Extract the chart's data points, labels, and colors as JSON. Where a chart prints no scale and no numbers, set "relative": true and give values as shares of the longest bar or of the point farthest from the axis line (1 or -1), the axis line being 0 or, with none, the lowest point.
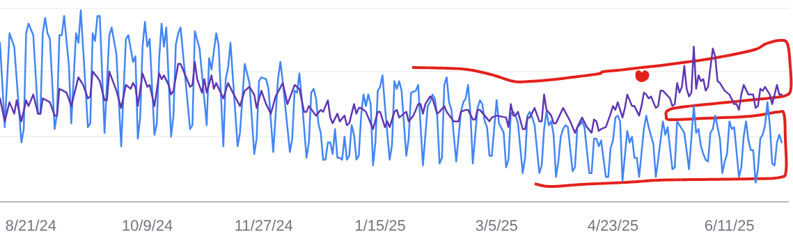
{
  "chart_data": {
    "type": "line",
    "relative": true,
    "tick_labels": "x",
    "line_style": "solid",
    "xlim": [
      "2024-08-08",
      "2025-07-06"
    ],
    "xticks": [
      {
        "value": "2024-08-21",
        "label": "8/21/24"
      },
      {
        "value": "2024-10-09",
        "label": "10/9/24"
      },
      {
        "value": "2024-11-27",
        "label": "11/27/24"
      },
      {
        "value": "2025-01-15",
        "label": "1/15/25"
      },
      {
        "value": "2025-03-05",
        "label": "3/5/25"
      },
      {
        "value": "2025-04-23",
        "label": "4/23/25"
      },
      {
        "value": "2025-06-11",
        "label": "6/11/25"
      }
    ],
    "ref_lines": [
      {
        "axis": "y",
        "value": 0.34,
        "color": "#e8e8e8"
      },
      {
        "axis": "y",
        "value": 0.68,
        "color": "#e8e8e8"
      },
      {
        "axis": "y",
        "value": 1.01,
        "color": "#e8e8e8"
      }
    ],
    "series": [
      {
        "color": "#4285f4",
        "x": [
          "2024-08-08",
          "2024-08-10",
          "2024-08-12",
          "2024-08-14",
          "2024-08-17",
          "2024-08-18",
          "2024-08-19",
          "2024-08-20",
          "2024-08-22",
          "2024-08-24",
          "2024-08-25",
          "2024-08-26",
          "2024-08-27",
          "2024-08-28",
          "2024-08-29",
          "2024-08-31",
          "2024-09-01",
          "2024-09-02",
          "2024-09-03",
          "2024-09-04",
          "2024-09-06",
          "2024-09-07",
          "2024-09-09",
          "2024-09-10",
          "2024-09-11",
          "2024-09-14",
          "2024-09-15",
          "2024-09-16",
          "2024-09-17",
          "2024-09-18",
          "2024-09-19",
          "2024-09-21",
          "2024-09-23",
          "2024-09-24",
          "2024-09-26",
          "2024-09-28",
          "2024-09-30",
          "2024-10-01",
          "2024-10-03",
          "2024-10-04",
          "2024-10-05",
          "2024-10-06",
          "2024-10-07",
          "2024-10-08",
          "2024-10-09",
          "2024-10-10",
          "2024-10-12",
          "2024-10-13",
          "2024-10-14",
          "2024-10-15",
          "2024-10-16",
          "2024-10-17",
          "2024-10-19",
          "2024-10-20",
          "2024-10-21",
          "2024-10-22",
          "2024-10-23",
          "2024-10-27",
          "2024-10-28",
          "2024-10-29",
          "2024-10-31",
          "2024-11-03",
          "2024-11-04",
          "2024-11-05",
          "2024-11-07",
          "2024-11-08",
          "2024-11-10",
          "2024-11-11",
          "2024-11-12",
          "2024-11-13",
          "2024-11-16",
          "2024-11-17",
          "2024-11-19",
          "2024-11-21",
          "2024-11-23",
          "2024-11-24",
          "2024-11-25",
          "2024-11-26",
          "2024-11-28",
          "2024-11-29",
          "2024-12-01",
          "2024-12-03",
          "2024-12-04",
          "2024-12-05",
          "2024-12-08",
          "2024-12-09",
          "2024-12-10",
          "2024-12-11",
          "2024-12-12",
          "2024-12-13",
          "2024-12-15",
          "2024-12-16",
          "2024-12-17",
          "2024-12-18",
          "2024-12-19",
          "2024-12-20",
          "2024-12-21",
          "2024-12-22",
          "2024-12-23",
          "2024-12-24",
          "2024-12-25",
          "2024-12-26",
          "2024-12-27",
          "2024-12-28",
          "2024-12-29",
          "2024-12-30",
          "2024-12-31",
          "2025-01-01",
          "2025-01-02",
          "2025-01-03",
          "2025-01-04",
          "2025-01-05",
          "2025-01-06",
          "2025-01-07",
          "2025-01-08",
          "2025-01-09",
          "2025-01-10",
          "2025-01-11",
          "2025-01-12",
          "2025-01-13",
          "2025-01-14",
          "2025-01-15",
          "2025-01-16",
          "2025-01-17",
          "2025-01-19",
          "2025-01-20",
          "2025-01-21",
          "2025-01-22",
          "2025-01-23",
          "2025-01-24",
          "2025-01-26",
          "2025-01-27",
          "2025-01-28",
          "2025-01-30",
          "2025-01-31",
          "2025-02-02",
          "2025-02-04",
          "2025-02-05",
          "2025-02-06",
          "2025-02-07",
          "2025-02-08",
          "2025-02-09",
          "2025-02-10",
          "2025-02-11",
          "2025-02-12",
          "2025-02-13",
          "2025-02-14",
          "2025-02-16",
          "2025-02-18",
          "2025-02-19",
          "2025-02-20",
          "2025-02-21",
          "2025-02-22",
          "2025-02-23",
          "2025-02-25",
          "2025-02-26",
          "2025-02-27",
          "2025-02-28",
          "2025-03-01",
          "2025-03-02",
          "2025-03-03",
          "2025-03-05",
          "2025-03-06",
          "2025-03-08",
          "2025-03-09",
          "2025-03-10",
          "2025-03-11",
          "2025-03-12",
          "2025-03-13",
          "2025-03-14",
          "2025-03-16",
          "2025-03-17",
          "2025-03-18",
          "2025-03-19",
          "2025-03-20",
          "2025-03-21",
          "2025-03-23",
          "2025-03-24",
          "2025-03-25",
          "2025-03-26",
          "2025-03-27",
          "2025-03-28",
          "2025-03-29",
          "2025-03-30",
          "2025-03-31",
          "2025-04-01",
          "2025-04-02",
          "2025-04-03",
          "2025-04-04",
          "2025-04-06",
          "2025-04-07",
          "2025-04-08",
          "2025-04-09",
          "2025-04-10",
          "2025-04-11",
          "2025-04-13",
          "2025-04-14",
          "2025-04-15",
          "2025-04-16",
          "2025-04-17",
          "2025-04-18",
          "2025-04-20",
          "2025-04-21",
          "2025-04-22",
          "2025-04-23",
          "2025-04-24",
          "2025-04-25",
          "2025-04-26",
          "2025-04-27",
          "2025-04-29",
          "2025-04-30",
          "2025-05-01",
          "2025-05-02",
          "2025-05-03",
          "2025-05-04",
          "2025-05-06",
          "2025-05-07",
          "2025-05-08",
          "2025-05-10",
          "2025-05-11",
          "2025-05-12",
          "2025-05-14",
          "2025-05-15",
          "2025-05-16",
          "2025-05-18",
          "2025-05-19",
          "2025-05-20",
          "2025-05-21",
          "2025-05-22",
          "2025-05-23",
          "2025-05-25",
          "2025-05-27",
          "2025-05-28",
          "2025-05-29",
          "2025-05-30",
          "2025-05-31",
          "2025-06-01",
          "2025-06-02",
          "2025-06-03",
          "2025-06-04",
          "2025-06-05",
          "2025-06-07",
          "2025-06-08",
          "2025-06-09",
          "2025-06-10",
          "2025-06-11",
          "2025-06-12",
          "2025-06-13",
          "2025-06-15",
          "2025-06-16",
          "2025-06-17",
          "2025-06-18",
          "2025-06-19",
          "2025-06-20",
          "2025-06-21",
          "2025-06-22",
          "2025-06-23",
          "2025-06-24",
          "2025-06-25",
          "2025-06-26",
          "2025-06-27",
          "2025-06-28",
          "2025-06-29",
          "2025-06-30",
          "2025-07-01",
          "2025-07-02",
          "2025-07-03"
        ],
        "values": [
          0.83,
          0.39,
          0.88,
          0.81,
          0.31,
          0.38,
          0.88,
          0.93,
          0.87,
          0.46,
          0.46,
          0.88,
          0.96,
          0.88,
          0.85,
          0.38,
          0.46,
          0.87,
          0.87,
          0.97,
          0.71,
          0.41,
          0.88,
          0.83,
          1.0,
          0.39,
          0.41,
          0.88,
          0.84,
          0.97,
          0.97,
          0.36,
          0.87,
          0.91,
          0.77,
          0.29,
          0.85,
          0.87,
          0.73,
          0.76,
          0.33,
          0.44,
          0.81,
          0.94,
          0.81,
          0.85,
          0.35,
          0.41,
          0.75,
          0.93,
          0.81,
          0.91,
          0.34,
          0.45,
          0.82,
          0.88,
          0.91,
          0.38,
          0.4,
          0.89,
          0.8,
          0.4,
          0.75,
          0.69,
          0.88,
          0.82,
          0.29,
          0.64,
          0.7,
          0.83,
          0.29,
          0.36,
          0.72,
          0.62,
          0.25,
          0.33,
          0.63,
          0.65,
          0.64,
          0.59,
          0.26,
          0.64,
          0.73,
          0.63,
          0.26,
          0.33,
          0.58,
          0.57,
          0.67,
          0.54,
          0.23,
          0.31,
          0.57,
          0.59,
          0.54,
          0.41,
          0.36,
          0.22,
          0.22,
          0.31,
          0.31,
          0.25,
          0.38,
          0.23,
          0.23,
          0.22,
          0.34,
          0.22,
          0.24,
          0.4,
          0.35,
          0.22,
          0.24,
          0.45,
          0.56,
          0.5,
          0.56,
          0.51,
          0.19,
          0.31,
          0.58,
          0.6,
          0.66,
          0.5,
          0.22,
          0.3,
          0.63,
          0.59,
          0.63,
          0.58,
          0.24,
          0.33,
          0.57,
          0.58,
          0.61,
          0.19,
          0.5,
          0.52,
          0.56,
          0.54,
          0.45,
          0.2,
          0.23,
          0.61,
          0.65,
          0.52,
          0.48,
          0.21,
          0.47,
          0.52,
          0.54,
          0.61,
          0.46,
          0.2,
          0.49,
          0.53,
          0.51,
          0.42,
          0.39,
          0.24,
          0.24,
          0.53,
          0.41,
          0.36,
          0.18,
          0.22,
          0.46,
          0.47,
          0.45,
          0.41,
          0.15,
          0.23,
          0.45,
          0.47,
          0.44,
          0.4,
          0.15,
          0.19,
          0.38,
          0.47,
          0.4,
          0.42,
          0.35,
          0.13,
          0.21,
          0.34,
          0.38,
          0.4,
          0.39,
          0.16,
          0.18,
          0.39,
          0.4,
          0.42,
          0.39,
          0.15,
          0.15,
          0.33,
          0.33,
          0.29,
          0.32,
          0.13,
          0.13,
          0.28,
          0.32,
          0.44,
          0.45,
          0.42,
          0.11,
          0.37,
          0.31,
          0.34,
          0.23,
          0.23,
          0.13,
          0.38,
          0.45,
          0.39,
          0.3,
          0.13,
          0.22,
          0.42,
          0.35,
          0.39,
          0.17,
          0.18,
          0.42,
          0.4,
          0.38,
          0.36,
          0.17,
          0.5,
          0.36,
          0.38,
          0.29,
          0.25,
          0.22,
          0.21,
          0.36,
          0.38,
          0.45,
          0.33,
          0.15,
          0.21,
          0.25,
          0.42,
          0.38,
          0.39,
          0.13,
          0.18,
          0.34,
          0.42,
          0.32,
          0.27,
          0.27,
          0.1,
          0.17,
          0.33,
          0.35,
          0.4,
          0.52,
          0.4,
          0.2,
          0.19,
          0.31,
          0.35,
          0.31
        ]
      },
      {
        "color": "#5e35b1",
        "x": [
          "2024-08-08",
          "2024-08-10",
          "2024-08-12",
          "2024-08-14",
          "2024-08-15",
          "2024-08-17",
          "2024-08-19",
          "2024-08-20",
          "2024-08-22",
          "2024-08-24",
          "2024-08-25",
          "2024-08-26",
          "2024-08-29",
          "2024-08-31",
          "2024-09-01",
          "2024-09-02",
          "2024-09-05",
          "2024-09-07",
          "2024-09-10",
          "2024-09-12",
          "2024-09-14",
          "2024-09-15",
          "2024-09-16",
          "2024-09-18",
          "2024-09-19",
          "2024-09-21",
          "2024-09-22",
          "2024-09-23",
          "2024-09-26",
          "2024-09-28",
          "2024-09-30",
          "2024-10-02",
          "2024-10-03",
          "2024-10-04",
          "2024-10-05",
          "2024-10-07",
          "2024-10-09",
          "2024-10-10",
          "2024-10-12",
          "2024-10-14",
          "2024-10-15",
          "2024-10-16",
          "2024-10-18",
          "2024-10-19",
          "2024-10-20",
          "2024-10-22",
          "2024-10-23",
          "2024-10-25",
          "2024-10-27",
          "2024-10-28",
          "2024-10-29",
          "2024-10-30",
          "2024-11-01",
          "2024-11-02",
          "2024-11-03",
          "2024-11-05",
          "2024-11-06",
          "2024-11-07",
          "2024-11-10",
          "2024-11-12",
          "2024-11-14",
          "2024-11-17",
          "2024-11-19",
          "2024-11-21",
          "2024-11-23",
          "2024-11-24",
          "2024-11-26",
          "2024-11-28",
          "2024-11-30",
          "2024-12-02",
          "2024-12-05",
          "2024-12-07",
          "2024-12-10",
          "2024-12-12",
          "2024-12-14",
          "2024-12-15",
          "2024-12-16",
          "2024-12-19",
          "2024-12-21",
          "2024-12-22",
          "2024-12-24",
          "2024-12-25",
          "2024-12-26",
          "2024-12-28",
          "2024-12-29",
          "2024-12-31",
          "2025-01-01",
          "2025-01-02",
          "2025-01-04",
          "2025-01-05",
          "2025-01-06",
          "2025-01-07",
          "2025-01-09",
          "2025-01-12",
          "2025-01-14",
          "2025-01-15",
          "2025-01-17",
          "2025-01-18",
          "2025-01-19",
          "2025-01-21",
          "2025-01-22",
          "2025-01-23",
          "2025-01-26",
          "2025-01-27",
          "2025-01-29",
          "2025-01-31",
          "2025-02-01",
          "2025-02-02",
          "2025-02-03",
          "2025-02-05",
          "2025-02-06",
          "2025-02-08",
          "2025-02-09",
          "2025-02-11",
          "2025-02-12",
          "2025-02-15",
          "2025-02-17",
          "2025-02-18",
          "2025-02-20",
          "2025-02-21",
          "2025-02-23",
          "2025-02-24",
          "2025-02-25",
          "2025-02-26",
          "2025-03-02",
          "2025-03-03",
          "2025-03-05",
          "2025-03-09",
          "2025-03-10",
          "2025-03-11",
          "2025-03-12",
          "2025-03-13",
          "2025-03-14",
          "2025-03-16",
          "2025-03-17",
          "2025-03-18",
          "2025-03-19",
          "2025-03-21",
          "2025-03-23",
          "2025-03-24",
          "2025-03-25",
          "2025-03-26",
          "2025-03-28",
          "2025-03-29",
          "2025-03-30",
          "2025-04-02",
          "2025-04-05",
          "2025-04-07",
          "2025-04-08",
          "2025-04-10",
          "2025-04-12",
          "2025-04-14",
          "2025-04-15",
          "2025-04-16",
          "2025-04-17",
          "2025-04-18",
          "2025-04-20",
          "2025-04-22",
          "2025-04-23",
          "2025-04-24",
          "2025-04-25",
          "2025-04-27",
          "2025-04-28",
          "2025-04-29",
          "2025-05-01",
          "2025-05-02",
          "2025-05-04",
          "2025-05-05",
          "2025-05-06",
          "2025-05-07",
          "2025-05-08",
          "2025-05-09",
          "2025-05-11",
          "2025-05-12",
          "2025-05-13",
          "2025-05-14",
          "2025-05-17",
          "2025-05-18",
          "2025-05-19",
          "2025-05-20",
          "2025-05-21",
          "2025-05-22",
          "2025-05-23",
          "2025-05-24",
          "2025-05-25",
          "2025-05-26",
          "2025-05-27",
          "2025-05-28",
          "2025-05-29",
          "2025-05-30",
          "2025-05-31",
          "2025-06-01",
          "2025-06-02",
          "2025-06-04",
          "2025-06-05",
          "2025-06-06",
          "2025-06-07",
          "2025-06-09",
          "2025-06-11",
          "2025-06-13",
          "2025-06-14",
          "2025-06-15",
          "2025-06-16",
          "2025-06-17",
          "2025-06-19",
          "2025-06-20",
          "2025-06-21",
          "2025-06-22",
          "2025-06-23",
          "2025-06-24",
          "2025-06-25",
          "2025-06-26",
          "2025-06-27",
          "2025-06-28",
          "2025-06-29",
          "2025-06-30",
          "2025-07-01",
          "2025-07-02",
          "2025-07-03"
        ],
        "values": [
          0.54,
          0.42,
          0.52,
          0.46,
          0.53,
          0.42,
          0.53,
          0.5,
          0.56,
          0.46,
          0.46,
          0.54,
          0.52,
          0.45,
          0.45,
          0.59,
          0.57,
          0.5,
          0.65,
          0.61,
          0.54,
          0.55,
          0.68,
          0.65,
          0.63,
          0.53,
          0.53,
          0.68,
          0.58,
          0.49,
          0.61,
          0.59,
          0.62,
          0.6,
          0.5,
          0.67,
          0.6,
          0.61,
          0.5,
          0.67,
          0.64,
          0.66,
          0.61,
          0.56,
          0.58,
          0.72,
          0.72,
          0.66,
          0.6,
          0.61,
          0.73,
          0.64,
          0.57,
          0.64,
          0.57,
          0.66,
          0.59,
          0.62,
          0.54,
          0.62,
          0.57,
          0.5,
          0.58,
          0.6,
          0.56,
          0.49,
          0.58,
          0.51,
          0.46,
          0.55,
          0.62,
          0.51,
          0.61,
          0.59,
          0.47,
          0.47,
          0.5,
          0.45,
          0.48,
          0.47,
          0.53,
          0.44,
          0.41,
          0.46,
          0.42,
          0.45,
          0.4,
          0.41,
          0.51,
          0.46,
          0.49,
          0.49,
          0.47,
          0.38,
          0.47,
          0.47,
          0.39,
          0.42,
          0.39,
          0.47,
          0.48,
          0.44,
          0.47,
          0.42,
          0.45,
          0.51,
          0.51,
          0.46,
          0.51,
          0.55,
          0.54,
          0.46,
          0.47,
          0.5,
          0.47,
          0.42,
          0.42,
          0.47,
          0.48,
          0.48,
          0.43,
          0.43,
          0.48,
          0.48,
          0.42,
          0.44,
          0.45,
          0.44,
          0.39,
          0.51,
          0.45,
          0.45,
          0.47,
          0.38,
          0.38,
          0.44,
          0.44,
          0.49,
          0.42,
          0.42,
          0.56,
          0.48,
          0.45,
          0.41,
          0.41,
          0.49,
          0.42,
          0.36,
          0.39,
          0.44,
          0.39,
          0.36,
          0.43,
          0.42,
          0.37,
          0.38,
          0.39,
          0.46,
          0.5,
          0.48,
          0.52,
          0.44,
          0.49,
          0.56,
          0.5,
          0.5,
          0.45,
          0.5,
          0.57,
          0.56,
          0.54,
          0.55,
          0.49,
          0.5,
          0.58,
          0.58,
          0.54,
          0.5,
          0.51,
          0.62,
          0.57,
          0.6,
          0.71,
          0.59,
          0.55,
          0.57,
          0.81,
          0.59,
          0.66,
          0.63,
          0.64,
          0.58,
          0.6,
          0.8,
          0.76,
          0.63,
          0.62,
          0.58,
          0.56,
          0.51,
          0.51,
          0.48,
          0.56,
          0.61,
          0.56,
          0.56,
          0.56,
          0.49,
          0.5,
          0.59,
          0.58,
          0.6,
          0.58,
          0.56,
          0.51,
          0.56,
          0.61,
          0.56,
          0.56
        ]
      }
    ]
  }
}
